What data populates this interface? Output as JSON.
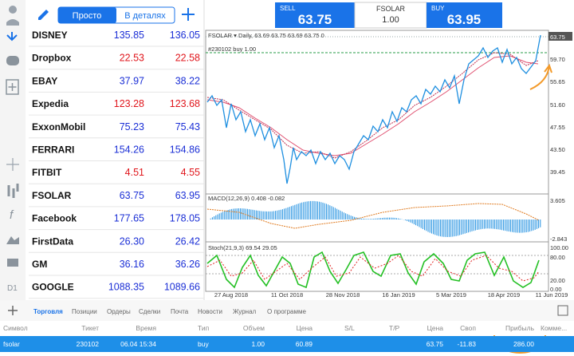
{
  "header": {
    "tabs": [
      "Просто",
      "В деталях"
    ]
  },
  "quotes": [
    {
      "symbol": "DISNEY",
      "bid": "135.85",
      "ask": "136.05",
      "color": "#1b2fd6"
    },
    {
      "symbol": "Dropbox",
      "bid": "22.53",
      "ask": "22.58",
      "color": "#e0151b"
    },
    {
      "symbol": "EBAY",
      "bid": "37.97",
      "ask": "38.22",
      "color": "#1b2fd6"
    },
    {
      "symbol": "Expedia",
      "bid": "123.28",
      "ask": "123.68",
      "color": "#e0151b"
    },
    {
      "symbol": "ExxonMobil",
      "bid": "75.23",
      "ask": "75.43",
      "color": "#1b2fd6"
    },
    {
      "symbol": "FERRARI",
      "bid": "154.26",
      "ask": "154.86",
      "color": "#1b2fd6"
    },
    {
      "symbol": "FITBIT",
      "bid": "4.51",
      "ask": "4.55",
      "color": "#e0151b"
    },
    {
      "symbol": "FSOLAR",
      "bid": "63.75",
      "ask": "63.95",
      "color": "#1b2fd6"
    },
    {
      "symbol": "Facebook",
      "bid": "177.65",
      "ask": "178.05",
      "color": "#1b2fd6"
    },
    {
      "symbol": "FirstData",
      "bid": "26.30",
      "ask": "26.42",
      "color": "#1b2fd6"
    },
    {
      "symbol": "GM",
      "bid": "36.16",
      "ask": "36.26",
      "color": "#1b2fd6"
    },
    {
      "symbol": "GOOGLE",
      "bid": "1088.35",
      "ask": "1089.66",
      "color": "#1b2fd6"
    }
  ],
  "trade_panel": {
    "sell_label": "SELL",
    "sell": "63.75",
    "symbol": "FSOLAR",
    "volume": "1.00",
    "buy_label": "BUY",
    "buy": "63.95"
  },
  "chart": {
    "title": "FSOLAR ▾ Daily, 63.69 63.75 63.69 63.75 0",
    "position_label": "#230102 buy 1.00",
    "price_ticks": [
      "63.75",
      "59.70",
      "55.65",
      "51.60",
      "47.55",
      "43.50",
      "39.45"
    ],
    "macd_label": "MACD(12,26,9) 0.408 -0.082",
    "macd_ticks": [
      "3.605",
      "-2.843"
    ],
    "stoch_label": "Stoch(21,9,3) 69.54 29.05",
    "stoch_ticks": [
      "100.00",
      "80.00",
      "20.00",
      "0.00"
    ],
    "dates": [
      "27 Aug 2018",
      "11 Oct 2018",
      "28 Nov 2018",
      "16 Jan 2019",
      "5 Mar 2019",
      "18 Apr 2019",
      "11 Jun 2019"
    ]
  },
  "bottom_tabs": [
    "Торговля",
    "Позиции",
    "Ордеры",
    "Сделки",
    "Почта",
    "Новости",
    "Журнал",
    "О программе"
  ],
  "table": {
    "columns": [
      "Символ",
      "Тикет",
      "Время",
      "Тип",
      "Объем",
      "Цена",
      "S/L",
      "T/P",
      "Цена",
      "Своп",
      "Прибыль",
      "Комме..."
    ],
    "rows": [
      [
        "fsolar",
        "230102",
        "06.04 15:34",
        "buy",
        "1.00",
        "60.89",
        "",
        "",
        "63.75",
        "-11.83",
        "286.00",
        ""
      ]
    ]
  }
}
